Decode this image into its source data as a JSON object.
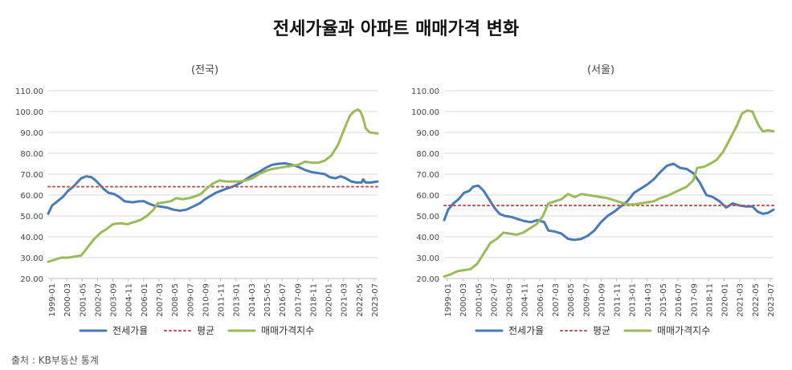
{
  "title": "전세가율과 아파트 매매가격 변화",
  "source": "출처 : KB부동산 통계",
  "colors": {
    "jeonse": "#4a7ab5",
    "average": "#c0504d",
    "price": "#9bbb59",
    "grid": "#d9d9d9",
    "axis": "#bfbfbf"
  },
  "chart_data": [
    {
      "type": "line",
      "subtitle": "(전국)",
      "ylim": [
        20,
        110
      ],
      "yticks": [
        "20.00",
        "30.00",
        "40.00",
        "50.00",
        "60.00",
        "70.00",
        "80.00",
        "90.00",
        "100.00",
        "110.00"
      ],
      "x_tick_labels": [
        "1999-01",
        "2000-03",
        "2001-05",
        "2002-07",
        "2003-09",
        "2004-11",
        "2006-01",
        "2007-03",
        "2008-05",
        "2009-07",
        "2010-09",
        "2011-11",
        "2013-01",
        "2014-03",
        "2015-05",
        "2016-07",
        "2017-09",
        "2018-11",
        "2020-01",
        "2021-03",
        "2022-05",
        "2023-07"
      ],
      "x_range": [
        1999.0,
        2024.0
      ],
      "series": [
        {
          "name": "전세가율",
          "style": "solid",
          "points": [
            [
              1999.0,
              51
            ],
            [
              1999.3,
              55
            ],
            [
              1999.7,
              57
            ],
            [
              2000.1,
              59
            ],
            [
              2000.5,
              62
            ],
            [
              2000.9,
              64
            ],
            [
              2001.2,
              66
            ],
            [
              2001.5,
              68
            ],
            [
              2001.9,
              69
            ],
            [
              2002.3,
              68.5
            ],
            [
              2002.6,
              67
            ],
            [
              2002.9,
              65
            ],
            [
              2003.2,
              63
            ],
            [
              2003.6,
              61
            ],
            [
              2004.0,
              60.5
            ],
            [
              2004.4,
              59
            ],
            [
              2004.8,
              57
            ],
            [
              2005.4,
              56.5
            ],
            [
              2005.9,
              57
            ],
            [
              2006.3,
              57
            ],
            [
              2006.6,
              56
            ],
            [
              2007.0,
              55
            ],
            [
              2007.5,
              54.5
            ],
            [
              2008.0,
              54
            ],
            [
              2008.5,
              53
            ],
            [
              2009.0,
              52.5
            ],
            [
              2009.5,
              53
            ],
            [
              2010.0,
              54.5
            ],
            [
              2010.5,
              56
            ],
            [
              2010.9,
              58
            ],
            [
              2011.3,
              59.5
            ],
            [
              2011.7,
              61
            ],
            [
              2012.1,
              62
            ],
            [
              2012.5,
              63
            ],
            [
              2013.0,
              64
            ],
            [
              2013.5,
              65.5
            ],
            [
              2014.0,
              67.5
            ],
            [
              2014.5,
              69.5
            ],
            [
              2015.0,
              71
            ],
            [
              2015.5,
              73
            ],
            [
              2016.0,
              74.5
            ],
            [
              2016.5,
              75
            ],
            [
              2017.0,
              75.2
            ],
            [
              2017.5,
              74.5
            ],
            [
              2018.0,
              73.5
            ],
            [
              2018.5,
              72
            ],
            [
              2019.0,
              71
            ],
            [
              2019.5,
              70.5
            ],
            [
              2020.0,
              70
            ],
            [
              2020.4,
              68.5
            ],
            [
              2020.8,
              68
            ],
            [
              2021.2,
              69
            ],
            [
              2021.6,
              68
            ],
            [
              2022.0,
              66.5
            ],
            [
              2022.4,
              66
            ],
            [
              2022.8,
              66
            ],
            [
              2022.9,
              67.5
            ],
            [
              2023.1,
              66
            ],
            [
              2023.5,
              66
            ],
            [
              2024.0,
              66.5
            ]
          ]
        },
        {
          "name": "평균",
          "style": "dotted",
          "points": [
            [
              1999.0,
              64
            ],
            [
              2024.0,
              64
            ]
          ]
        },
        {
          "name": "매매가격지수",
          "style": "solid",
          "points": [
            [
              1999.0,
              28
            ],
            [
              1999.5,
              29
            ],
            [
              2000.0,
              30
            ],
            [
              2000.5,
              30
            ],
            [
              2001.0,
              30.5
            ],
            [
              2001.5,
              31
            ],
            [
              2002.0,
              35
            ],
            [
              2002.5,
              39
            ],
            [
              2003.0,
              42
            ],
            [
              2003.5,
              44
            ],
            [
              2003.9,
              46
            ],
            [
              2004.5,
              46.5
            ],
            [
              2005.0,
              46
            ],
            [
              2005.5,
              47
            ],
            [
              2006.0,
              48
            ],
            [
              2006.5,
              50
            ],
            [
              2007.0,
              53
            ],
            [
              2007.3,
              56
            ],
            [
              2007.8,
              56.5
            ],
            [
              2008.3,
              57
            ],
            [
              2008.7,
              58.5
            ],
            [
              2009.2,
              58
            ],
            [
              2009.7,
              58.5
            ],
            [
              2010.2,
              59.5
            ],
            [
              2010.6,
              60.5
            ],
            [
              2011.0,
              63
            ],
            [
              2011.5,
              65.5
            ],
            [
              2012.0,
              67
            ],
            [
              2012.5,
              66.5
            ],
            [
              2013.0,
              66.5
            ],
            [
              2013.5,
              66.5
            ],
            [
              2014.0,
              67
            ],
            [
              2014.5,
              68
            ],
            [
              2015.0,
              70
            ],
            [
              2015.5,
              71.5
            ],
            [
              2016.0,
              72.5
            ],
            [
              2016.5,
              73
            ],
            [
              2017.0,
              73.5
            ],
            [
              2017.5,
              74
            ],
            [
              2018.0,
              74.5
            ],
            [
              2018.5,
              76
            ],
            [
              2019.0,
              75.5
            ],
            [
              2019.5,
              75.5
            ],
            [
              2020.0,
              76.5
            ],
            [
              2020.5,
              79
            ],
            [
              2021.0,
              84
            ],
            [
              2021.5,
              92
            ],
            [
              2021.9,
              98
            ],
            [
              2022.2,
              100
            ],
            [
              2022.5,
              101
            ],
            [
              2022.7,
              100
            ],
            [
              2022.9,
              97
            ],
            [
              2023.1,
              92
            ],
            [
              2023.4,
              90
            ],
            [
              2024.0,
              89.5
            ]
          ]
        }
      ]
    },
    {
      "type": "line",
      "subtitle": "(서울)",
      "ylim": [
        20,
        110
      ],
      "yticks": [
        "20.00",
        "30.00",
        "40.00",
        "50.00",
        "60.00",
        "70.00",
        "80.00",
        "90.00",
        "100.00",
        "110.00"
      ],
      "x_tick_labels": [
        "1999-01",
        "2000-03",
        "2001-05",
        "2002-07",
        "2003-09",
        "2004-11",
        "2006-01",
        "2007-03",
        "2008-05",
        "2009-07",
        "2010-09",
        "2011-11",
        "2013-01",
        "2014-03",
        "2015-05",
        "2016-07",
        "2017-09",
        "2018-11",
        "2020-01",
        "2021-03",
        "2022-05",
        "2023-07"
      ],
      "x_range": [
        1999.0,
        2024.0
      ],
      "series": [
        {
          "name": "전세가율",
          "style": "solid",
          "points": [
            [
              1999.0,
              48
            ],
            [
              1999.3,
              53
            ],
            [
              1999.7,
              56
            ],
            [
              2000.1,
              58
            ],
            [
              2000.5,
              61
            ],
            [
              2000.9,
              62
            ],
            [
              2001.2,
              64
            ],
            [
              2001.6,
              64.5
            ],
            [
              2002.0,
              62
            ],
            [
              2002.4,
              58
            ],
            [
              2002.8,
              54
            ],
            [
              2003.2,
              51
            ],
            [
              2003.6,
              50
            ],
            [
              2004.1,
              49.5
            ],
            [
              2004.6,
              48.5
            ],
            [
              2005.1,
              47.5
            ],
            [
              2005.6,
              47
            ],
            [
              2006.1,
              48
            ],
            [
              2006.6,
              47
            ],
            [
              2006.9,
              43
            ],
            [
              2007.4,
              42.5
            ],
            [
              2007.9,
              41.5
            ],
            [
              2008.4,
              39
            ],
            [
              2008.9,
              38.5
            ],
            [
              2009.4,
              39
            ],
            [
              2009.9,
              40.5
            ],
            [
              2010.4,
              43
            ],
            [
              2010.9,
              47
            ],
            [
              2011.4,
              50
            ],
            [
              2011.9,
              52
            ],
            [
              2012.4,
              54.5
            ],
            [
              2012.9,
              57
            ],
            [
              2013.4,
              61
            ],
            [
              2013.9,
              63
            ],
            [
              2014.4,
              65
            ],
            [
              2014.9,
              67.5
            ],
            [
              2015.4,
              71
            ],
            [
              2015.9,
              74
            ],
            [
              2016.4,
              75
            ],
            [
              2016.9,
              73
            ],
            [
              2017.4,
              72.5
            ],
            [
              2017.9,
              70.5
            ],
            [
              2018.4,
              66
            ],
            [
              2018.9,
              60
            ],
            [
              2019.4,
              59
            ],
            [
              2019.9,
              57
            ],
            [
              2020.4,
              54
            ],
            [
              2020.9,
              56
            ],
            [
              2021.4,
              55
            ],
            [
              2021.9,
              54.5
            ],
            [
              2022.4,
              54.5
            ],
            [
              2022.8,
              52
            ],
            [
              2023.2,
              51
            ],
            [
              2023.6,
              51.5
            ],
            [
              2024.0,
              53
            ]
          ]
        },
        {
          "name": "평균",
          "style": "dotted",
          "points": [
            [
              1999.0,
              55
            ],
            [
              2024.0,
              55
            ]
          ]
        },
        {
          "name": "매매가격지수",
          "style": "solid",
          "points": [
            [
              1999.0,
              21
            ],
            [
              1999.5,
              22
            ],
            [
              2000.0,
              23.5
            ],
            [
              2000.5,
              24
            ],
            [
              2001.0,
              24.5
            ],
            [
              2001.5,
              27
            ],
            [
              2002.0,
              32
            ],
            [
              2002.5,
              37
            ],
            [
              2003.0,
              39
            ],
            [
              2003.5,
              42
            ],
            [
              2004.0,
              41.5
            ],
            [
              2004.5,
              41
            ],
            [
              2005.0,
              42
            ],
            [
              2005.5,
              44
            ],
            [
              2006.0,
              46
            ],
            [
              2006.5,
              50
            ],
            [
              2006.9,
              56
            ],
            [
              2007.4,
              57
            ],
            [
              2007.9,
              58
            ],
            [
              2008.4,
              60.5
            ],
            [
              2008.9,
              59
            ],
            [
              2009.4,
              60.5
            ],
            [
              2009.9,
              60
            ],
            [
              2010.4,
              59.5
            ],
            [
              2010.9,
              59
            ],
            [
              2011.4,
              58.5
            ],
            [
              2011.9,
              57.5
            ],
            [
              2012.4,
              56.5
            ],
            [
              2012.9,
              55.5
            ],
            [
              2013.4,
              55.5
            ],
            [
              2013.9,
              56
            ],
            [
              2014.4,
              56.5
            ],
            [
              2014.9,
              57
            ],
            [
              2015.4,
              58.5
            ],
            [
              2015.9,
              59.5
            ],
            [
              2016.4,
              61
            ],
            [
              2016.9,
              62.5
            ],
            [
              2017.4,
              64
            ],
            [
              2017.9,
              67
            ],
            [
              2018.2,
              73
            ],
            [
              2018.7,
              73.5
            ],
            [
              2019.2,
              75
            ],
            [
              2019.7,
              77
            ],
            [
              2020.2,
              81
            ],
            [
              2020.7,
              87
            ],
            [
              2021.2,
              93
            ],
            [
              2021.6,
              99
            ],
            [
              2022.0,
              100.5
            ],
            [
              2022.4,
              100
            ],
            [
              2022.6,
              97
            ],
            [
              2022.9,
              93
            ],
            [
              2023.2,
              90.5
            ],
            [
              2023.6,
              91
            ],
            [
              2024.0,
              90.5
            ]
          ]
        }
      ]
    }
  ]
}
